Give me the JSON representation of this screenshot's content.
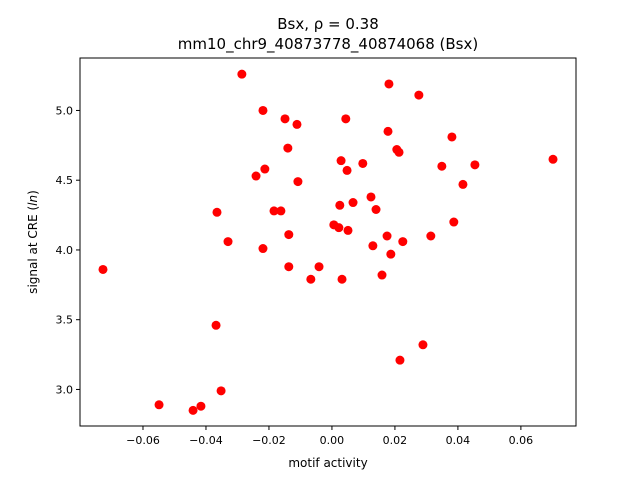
{
  "chart_data": {
    "type": "scatter",
    "title_line1": "Bsx, ρ = 0.38",
    "title_line2": "mm10_chr9_40873778_40874068 (Bsx)",
    "xlabel": "motif activity",
    "ylabel": "signal at CRE (ln)",
    "xlim": [
      -0.08,
      0.0775
    ],
    "ylim": [
      2.738,
      5.376
    ],
    "xticks": [
      -0.06,
      -0.04,
      -0.02,
      0.0,
      0.02,
      0.04,
      0.06
    ],
    "xtick_labels": [
      "−0.06",
      "−0.04",
      "−0.02",
      "0.00",
      "0.02",
      "0.04",
      "0.06"
    ],
    "yticks": [
      3.0,
      3.5,
      4.0,
      4.5,
      5.0
    ],
    "ytick_labels": [
      "3.0",
      "3.5",
      "4.0",
      "4.5",
      "5.0"
    ],
    "grid": false,
    "marker_color": "#ff0000",
    "points": [
      [
        -0.0286,
        5.26
      ],
      [
        -0.0219,
        5.0
      ],
      [
        0.0181,
        5.19
      ],
      [
        0.0276,
        5.11
      ],
      [
        -0.0149,
        4.94
      ],
      [
        -0.0111,
        4.9
      ],
      [
        0.0044,
        4.94
      ],
      [
        0.0178,
        4.85
      ],
      [
        0.0381,
        4.81
      ],
      [
        -0.014,
        4.73
      ],
      [
        0.0206,
        4.72
      ],
      [
        0.0213,
        4.7
      ],
      [
        0.0702,
        4.65
      ],
      [
        0.0029,
        4.64
      ],
      [
        0.0098,
        4.62
      ],
      [
        0.0454,
        4.61
      ],
      [
        0.0349,
        4.6
      ],
      [
        -0.0213,
        4.58
      ],
      [
        0.0048,
        4.57
      ],
      [
        -0.0241,
        4.53
      ],
      [
        -0.0108,
        4.49
      ],
      [
        0.0416,
        4.47
      ],
      [
        0.0124,
        4.38
      ],
      [
        0.0067,
        4.34
      ],
      [
        0.0025,
        4.32
      ],
      [
        0.014,
        4.29
      ],
      [
        -0.0184,
        4.28
      ],
      [
        -0.0162,
        4.28
      ],
      [
        -0.0365,
        4.27
      ],
      [
        0.0387,
        4.2
      ],
      [
        0.0006,
        4.18
      ],
      [
        0.0022,
        4.16
      ],
      [
        0.0051,
        4.14
      ],
      [
        -0.0137,
        4.11
      ],
      [
        0.0175,
        4.1
      ],
      [
        0.0314,
        4.1
      ],
      [
        -0.033,
        4.06
      ],
      [
        0.0225,
        4.06
      ],
      [
        0.013,
        4.03
      ],
      [
        -0.0219,
        4.01
      ],
      [
        0.0187,
        3.97
      ],
      [
        -0.0137,
        3.88
      ],
      [
        -0.0041,
        3.88
      ],
      [
        -0.0727,
        3.86
      ],
      [
        0.0159,
        3.82
      ],
      [
        -0.0067,
        3.79
      ],
      [
        0.0032,
        3.79
      ],
      [
        -0.0368,
        3.46
      ],
      [
        0.0289,
        3.32
      ],
      [
        0.0216,
        3.21
      ],
      [
        -0.0352,
        2.99
      ],
      [
        -0.0549,
        2.89
      ],
      [
        -0.0416,
        2.88
      ],
      [
        -0.0441,
        2.85
      ]
    ]
  }
}
